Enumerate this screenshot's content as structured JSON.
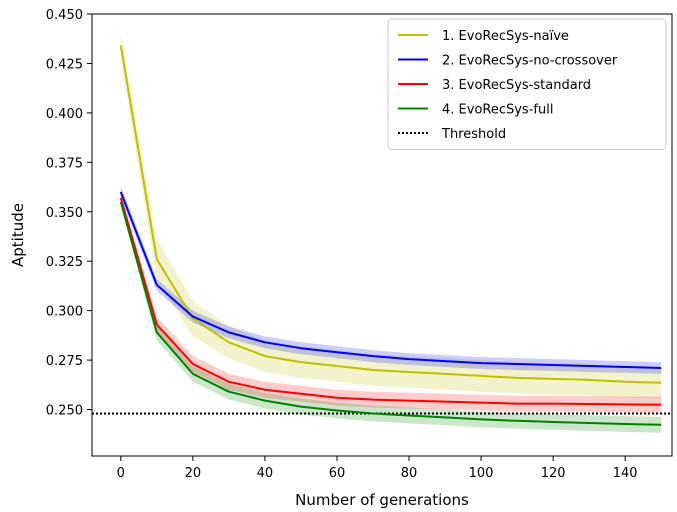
{
  "chart_data": {
    "type": "line",
    "title": "",
    "xlabel": "Number of generations",
    "ylabel": "Aptitude",
    "xlim": [
      -8,
      153
    ],
    "ylim": [
      0.2265,
      0.45
    ],
    "xticks": [
      "0",
      "20",
      "40",
      "60",
      "80",
      "100",
      "120",
      "140"
    ],
    "xtick_values": [
      0,
      20,
      40,
      60,
      80,
      100,
      120,
      140
    ],
    "yticks": [
      "0.250",
      "0.275",
      "0.300",
      "0.325",
      "0.350",
      "0.375",
      "0.400",
      "0.425",
      "0.450"
    ],
    "ytick_values": [
      0.25,
      0.275,
      0.3,
      0.325,
      0.35,
      0.375,
      0.4,
      0.425,
      0.45
    ],
    "grid": false,
    "legend_position": "top-right",
    "x": [
      0,
      10,
      20,
      30,
      40,
      50,
      60,
      70,
      80,
      90,
      100,
      110,
      120,
      130,
      140,
      150
    ],
    "series": [
      {
        "name": "1. EvoRecSys-naïve",
        "color": "#bfbf00",
        "values": [
          0.434,
          0.326,
          0.296,
          0.284,
          0.277,
          0.274,
          0.272,
          0.27,
          0.269,
          0.268,
          0.267,
          0.266,
          0.2655,
          0.265,
          0.264,
          0.2635
        ],
        "band": [
          0.006,
          0.01,
          0.009,
          0.008,
          0.008,
          0.008,
          0.008,
          0.008,
          0.008,
          0.008,
          0.008,
          0.008,
          0.008,
          0.008,
          0.008,
          0.008
        ]
      },
      {
        "name": "2. EvoRecSys-no-crossover",
        "color": "#0000ff",
        "values": [
          0.36,
          0.313,
          0.297,
          0.289,
          0.284,
          0.281,
          0.279,
          0.277,
          0.2755,
          0.2745,
          0.2735,
          0.273,
          0.2725,
          0.272,
          0.2715,
          0.271
        ],
        "band": [
          0.003,
          0.003,
          0.003,
          0.003,
          0.003,
          0.003,
          0.003,
          0.003,
          0.003,
          0.003,
          0.003,
          0.003,
          0.003,
          0.003,
          0.003,
          0.003
        ]
      },
      {
        "name": "3. EvoRecSys-standard",
        "color": "#ff0000",
        "values": [
          0.357,
          0.293,
          0.273,
          0.264,
          0.26,
          0.258,
          0.256,
          0.255,
          0.2545,
          0.254,
          0.2535,
          0.253,
          0.253,
          0.2528,
          0.2526,
          0.2525
        ],
        "band": [
          0.002,
          0.004,
          0.004,
          0.004,
          0.004,
          0.004,
          0.004,
          0.004,
          0.004,
          0.004,
          0.004,
          0.004,
          0.004,
          0.004,
          0.004,
          0.004
        ]
      },
      {
        "name": "4. EvoRecSys-full",
        "color": "#008000",
        "values": [
          0.355,
          0.289,
          0.268,
          0.259,
          0.2545,
          0.2515,
          0.2495,
          0.248,
          0.247,
          0.246,
          0.245,
          0.2443,
          0.2437,
          0.2432,
          0.2427,
          0.2423
        ],
        "band": [
          0.002,
          0.004,
          0.004,
          0.004,
          0.004,
          0.004,
          0.004,
          0.004,
          0.004,
          0.004,
          0.004,
          0.004,
          0.004,
          0.004,
          0.004,
          0.004
        ]
      }
    ],
    "threshold": {
      "name": "Threshold",
      "value": 0.248,
      "color": "#000000",
      "style": "dotted"
    }
  }
}
